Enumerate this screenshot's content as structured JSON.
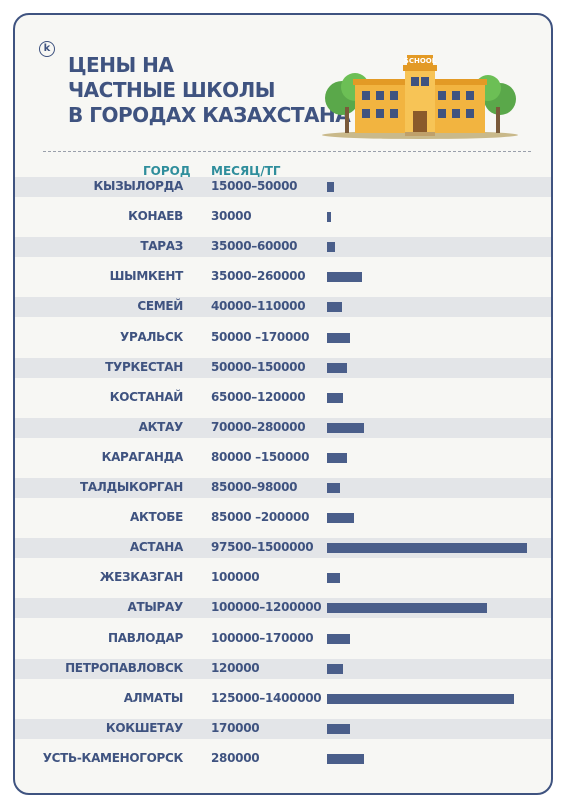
{
  "logo": {
    "letter": "k"
  },
  "title": {
    "lines": [
      "ЦЕНЫ НА",
      "ЧАСТНЫЕ ШКОЛЫ",
      "В ГОРОДАХ КАЗАХСТАНА"
    ]
  },
  "illustration": {
    "sign": "SCHOOL"
  },
  "colors": {
    "accent": "#3f5380",
    "header": "#2f8e9c",
    "bar": "#4a5e8a",
    "stripe": "#e3e5e8"
  },
  "chart_data": {
    "type": "bar",
    "orientation": "horizontal",
    "column_headers": [
      "ГОРОД",
      "МЕСЯЦ/ТГ"
    ],
    "xlim": [
      0,
      1500000
    ],
    "rows": [
      {
        "city": "КЫЗЫЛОРДА",
        "price": "15000–50000",
        "value": 50000
      },
      {
        "city": "КОНАЕВ",
        "price": "30000",
        "value": 30000
      },
      {
        "city": "ТАРАЗ",
        "price": "35000–60000",
        "value": 60000
      },
      {
        "city": "ШЫМКЕНТ",
        "price": "35000–260000",
        "value": 260000
      },
      {
        "city": "СЕМЕЙ",
        "price": "40000–110000",
        "value": 110000
      },
      {
        "city": "УРАЛЬСК",
        "price": "50000 –170000",
        "value": 170000
      },
      {
        "city": "ТУРКЕСТАН",
        "price": "50000–150000",
        "value": 150000
      },
      {
        "city": "КОСТАНАЙ",
        "price": "65000–120000",
        "value": 120000
      },
      {
        "city": "АКТАУ",
        "price": "70000–280000",
        "value": 280000
      },
      {
        "city": "КАРАГАНДА",
        "price": "80000 –150000",
        "value": 150000
      },
      {
        "city": "ТАЛДЫКОРГАН",
        "price": "85000–98000",
        "value": 98000
      },
      {
        "city": "АКТОБЕ",
        "price": "85000 –200000",
        "value": 200000
      },
      {
        "city": "АСТАНА",
        "price": "97500–1500000",
        "value": 1500000
      },
      {
        "city": "ЖЕЗКАЗГАН",
        "price": "100000",
        "value": 100000
      },
      {
        "city": "АТЫРАУ",
        "price": "100000–1200000",
        "value": 1200000
      },
      {
        "city": "ПАВЛОДАР",
        "price": "100000–170000",
        "value": 170000
      },
      {
        "city": "ПЕТРОПАВЛОВСК",
        "price": "120000",
        "value": 120000
      },
      {
        "city": "АЛМАТЫ",
        "price": "125000–1400000",
        "value": 1400000
      },
      {
        "city": "КОКШЕТАУ",
        "price": "170000",
        "value": 170000
      },
      {
        "city": "УСТЬ-КАМЕНОГОРСК",
        "price": "280000",
        "value": 280000
      }
    ]
  }
}
